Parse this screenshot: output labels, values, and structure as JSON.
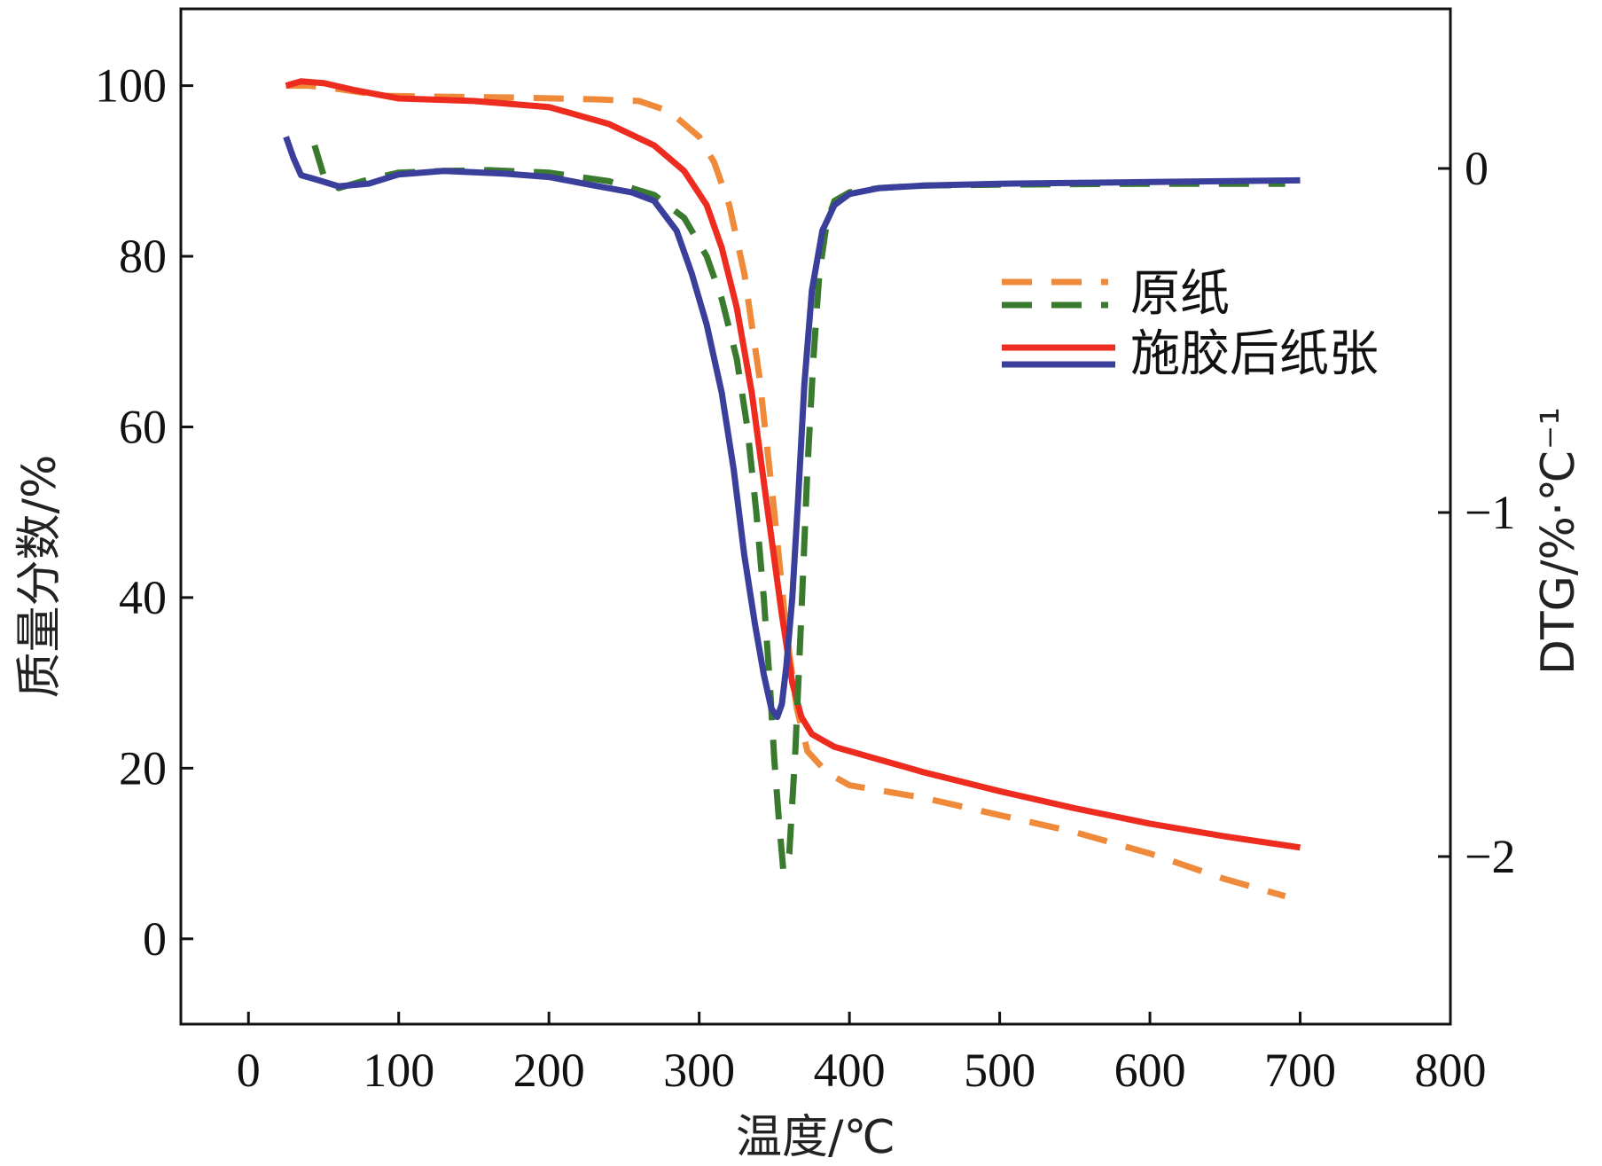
{
  "chart_data": {
    "type": "line",
    "xlabel": "温度/℃",
    "ylabel_left": "质量分数/%",
    "ylabel_right": "DTG/%·℃⁻¹",
    "x_ticks": [
      0,
      100,
      200,
      300,
      400,
      500,
      600,
      700,
      800
    ],
    "y_left_ticks": [
      0,
      20,
      40,
      60,
      80,
      100
    ],
    "y_right_ticks": [
      0,
      -1,
      -2
    ],
    "y_right_tick_labels": [
      "0",
      "−1",
      "−2"
    ],
    "xlim": [
      -45,
      800
    ],
    "ylim_left": [
      -10,
      109
    ],
    "grid": false,
    "legend_position": "center-right",
    "legend": [
      {
        "label": "原纸",
        "style": "dashed",
        "colors": [
          "#ee8a3a",
          "#3a7a2e"
        ]
      },
      {
        "label": "施胶后纸张",
        "style": "solid",
        "colors": [
          "#ee2b1f",
          "#3a3f9c"
        ]
      }
    ],
    "series": [
      {
        "name": "原纸",
        "kind": "TG",
        "axis": "left",
        "color": "#ee8a3a",
        "style": "dashed",
        "points": [
          [
            25,
            100
          ],
          [
            40,
            100
          ],
          [
            60,
            99.6
          ],
          [
            90,
            98.8
          ],
          [
            130,
            98.7
          ],
          [
            180,
            98.6
          ],
          [
            230,
            98.4
          ],
          [
            260,
            98.2
          ],
          [
            280,
            97
          ],
          [
            300,
            94
          ],
          [
            310,
            91
          ],
          [
            320,
            86
          ],
          [
            330,
            78
          ],
          [
            340,
            66
          ],
          [
            350,
            50
          ],
          [
            358,
            36
          ],
          [
            365,
            27
          ],
          [
            372,
            22
          ],
          [
            385,
            19.5
          ],
          [
            400,
            18
          ],
          [
            450,
            16.5
          ],
          [
            500,
            14.5
          ],
          [
            550,
            12.5
          ],
          [
            600,
            10
          ],
          [
            650,
            7
          ],
          [
            690,
            5
          ]
        ]
      },
      {
        "name": "施胶后纸张",
        "kind": "TG",
        "axis": "left",
        "color": "#ee2b1f",
        "style": "solid",
        "points": [
          [
            25,
            100
          ],
          [
            35,
            100.5
          ],
          [
            50,
            100.3
          ],
          [
            70,
            99.5
          ],
          [
            100,
            98.5
          ],
          [
            150,
            98.2
          ],
          [
            200,
            97.5
          ],
          [
            240,
            95.5
          ],
          [
            270,
            93
          ],
          [
            290,
            90
          ],
          [
            305,
            86
          ],
          [
            315,
            81
          ],
          [
            325,
            74
          ],
          [
            335,
            64
          ],
          [
            345,
            51
          ],
          [
            355,
            38
          ],
          [
            362,
            30
          ],
          [
            368,
            26
          ],
          [
            375,
            24
          ],
          [
            390,
            22.5
          ],
          [
            420,
            21
          ],
          [
            450,
            19.5
          ],
          [
            500,
            17.3
          ],
          [
            550,
            15.3
          ],
          [
            600,
            13.5
          ],
          [
            650,
            12
          ],
          [
            700,
            10.7
          ]
        ]
      },
      {
        "name": "原纸",
        "kind": "DTG",
        "axis": "left",
        "color": "#3a7a2e",
        "style": "dashed",
        "points": [
          [
            44,
            93
          ],
          [
            50,
            89.5
          ],
          [
            60,
            88
          ],
          [
            80,
            89
          ],
          [
            100,
            89.8
          ],
          [
            130,
            90
          ],
          [
            160,
            90.1
          ],
          [
            200,
            89.8
          ],
          [
            240,
            88.8
          ],
          [
            270,
            87.2
          ],
          [
            290,
            84.5
          ],
          [
            305,
            80
          ],
          [
            315,
            75
          ],
          [
            325,
            68
          ],
          [
            332,
            60
          ],
          [
            338,
            50
          ],
          [
            343,
            40
          ],
          [
            347,
            30
          ],
          [
            350,
            21
          ],
          [
            353,
            14
          ],
          [
            356,
            8
          ],
          [
            360,
            10
          ],
          [
            364,
            22
          ],
          [
            368,
            38
          ],
          [
            372,
            55
          ],
          [
            376,
            68
          ],
          [
            380,
            78
          ],
          [
            385,
            84
          ],
          [
            390,
            86.5
          ],
          [
            400,
            87.5
          ],
          [
            420,
            88
          ],
          [
            450,
            88.3
          ],
          [
            500,
            88.4
          ],
          [
            600,
            88.5
          ],
          [
            690,
            88.5
          ]
        ]
      },
      {
        "name": "施胶后纸张",
        "kind": "DTG",
        "axis": "left",
        "color": "#3a3f9c",
        "style": "solid",
        "points": [
          [
            25,
            94
          ],
          [
            30,
            91.5
          ],
          [
            35,
            89.5
          ],
          [
            45,
            89
          ],
          [
            60,
            88.2
          ],
          [
            80,
            88.5
          ],
          [
            100,
            89.6
          ],
          [
            130,
            90
          ],
          [
            170,
            89.7
          ],
          [
            200,
            89.3
          ],
          [
            230,
            88.3
          ],
          [
            255,
            87.5
          ],
          [
            270,
            86.5
          ],
          [
            285,
            83
          ],
          [
            295,
            78
          ],
          [
            305,
            72
          ],
          [
            315,
            64
          ],
          [
            323,
            55
          ],
          [
            330,
            45
          ],
          [
            337,
            37
          ],
          [
            343,
            31
          ],
          [
            348,
            27
          ],
          [
            352,
            26
          ],
          [
            355,
            27.5
          ],
          [
            358,
            32
          ],
          [
            362,
            40
          ],
          [
            366,
            52
          ],
          [
            370,
            65
          ],
          [
            375,
            76
          ],
          [
            382,
            83
          ],
          [
            390,
            86
          ],
          [
            400,
            87.3
          ],
          [
            420,
            88
          ],
          [
            450,
            88.3
          ],
          [
            500,
            88.5
          ],
          [
            600,
            88.7
          ],
          [
            700,
            88.9
          ]
        ]
      }
    ]
  }
}
